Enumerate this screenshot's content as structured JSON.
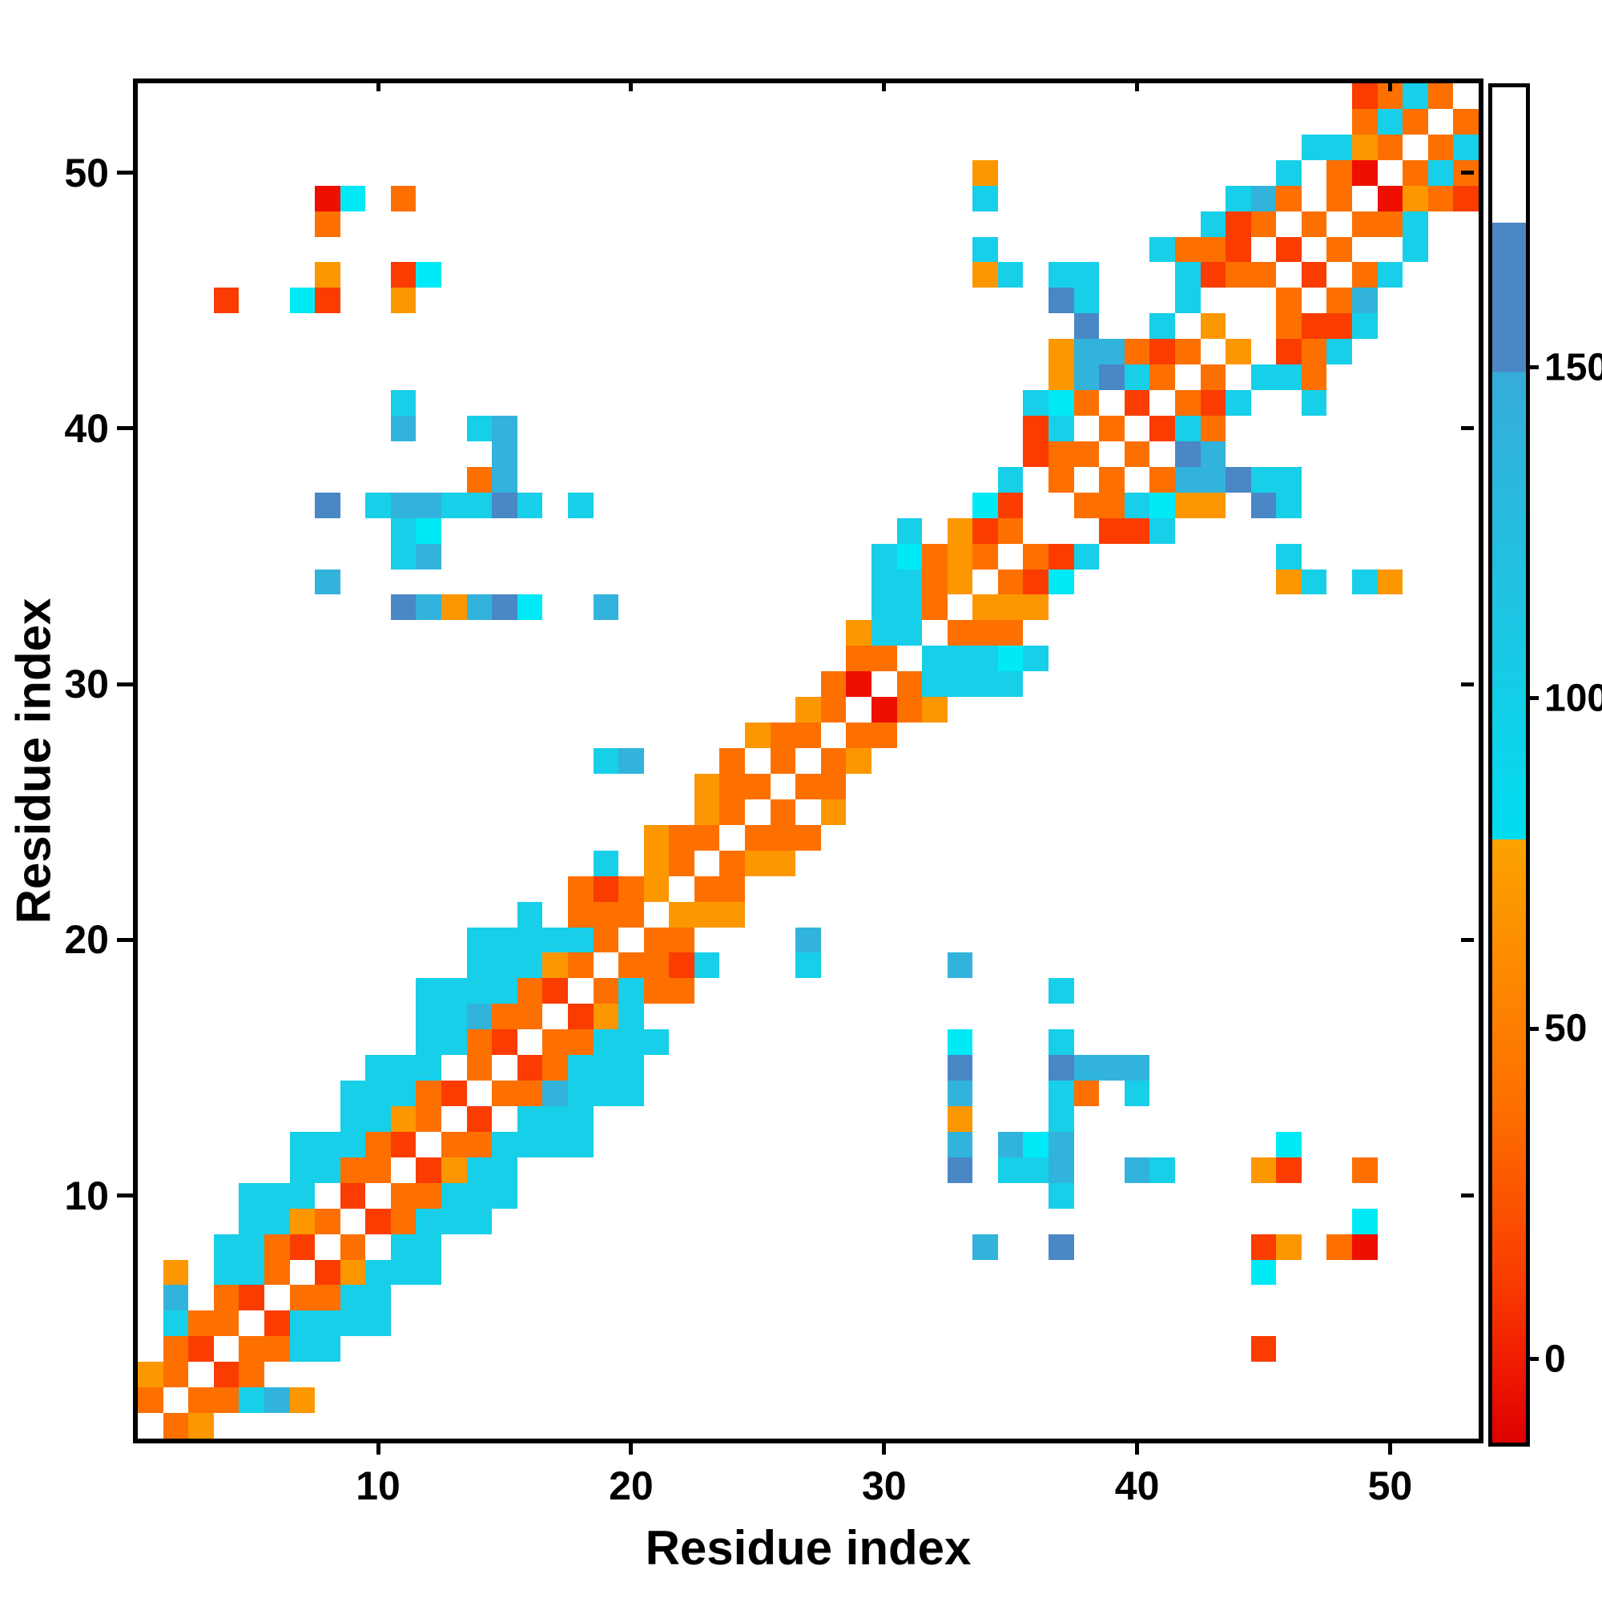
{
  "figure": {
    "xlabel": "Residue index",
    "ylabel": "Residue index",
    "background": "#ffffff",
    "spine_color": "#000000"
  },
  "chart_data": {
    "type": "heatmap",
    "title": "",
    "xlabel": "Residue index",
    "ylabel": "Residue index",
    "x_range": [
      1,
      53
    ],
    "y_range": [
      1,
      53
    ],
    "x_ticks": [
      10,
      20,
      30,
      40,
      50
    ],
    "y_ticks": [
      10,
      20,
      30,
      40,
      50
    ],
    "grid": false,
    "legend_position": "right-colorbar",
    "colorbar": {
      "ticks": [
        0,
        50,
        100,
        150
      ],
      "range": [
        -12,
        193
      ],
      "stops": [
        [
          0.0,
          "#dd0000"
        ],
        [
          0.05,
          "#ee1600"
        ],
        [
          0.12,
          "#f93c00"
        ],
        [
          0.25,
          "#fd7000"
        ],
        [
          0.36,
          "#fd8c00"
        ],
        [
          0.445,
          "#fba300"
        ],
        [
          0.4451,
          "#00dcf0"
        ],
        [
          0.6,
          "#1cc7e4"
        ],
        [
          0.79,
          "#35acda"
        ],
        [
          0.7901,
          "#4a86c4"
        ],
        [
          0.9,
          "#4a86c4"
        ],
        [
          0.9001,
          "#ffffff"
        ],
        [
          1.0,
          "#ffffff"
        ]
      ]
    },
    "palette": {
      ".": {
        "color": "transparent",
        "meaning": "no contact",
        "value_estimate": null
      },
      "E": {
        "color": "#ee0f00",
        "value_estimate": 5
      },
      "R": {
        "color": "#fa3c00",
        "value_estimate": 18
      },
      "O": {
        "color": "#fd7000",
        "value_estimate": 38
      },
      "A": {
        "color": "#fc9700",
        "value_estimate": 58
      },
      "P": {
        "color": "#00e9f7",
        "value_estimate": 78
      },
      "C": {
        "color": "#17cfe8",
        "value_estimate": 95
      },
      "D": {
        "color": "#32b3dc",
        "value_estimate": 118
      },
      "B": {
        "color": "#4a87c5",
        "value_estimate": 158
      }
    },
    "matrix_order": "rows listed top-to-bottom = residue 53 down to residue 1; chars left-to-right = residue 1..53",
    "matrix": [
      "................................................ROCO.",
      "................................................OCO.O",
      "..............................................CCAO.OC",
      ".................................A...........C.OE.OCO",
      ".......EP.O......................C.........CDO.O.EAOR",
      ".......O..................................CRO.O.OOC..",
      ".................................C......COOR.R.O..C..",
      ".......A..RP.....................AC.CC...CROO.R.OC...",
      "...R..PR..A.........................BC...C...O.OD....",
      ".....................................B..C.A..ORRC....",
      "....................................ADDORO.A.ROC.....",
      "....................................ADBCO.O.CCO......",
      "..........C........................CPO.R.ORC..C......",
      "..........D..CD....................RC.O.RCO..........",
      "..............D....................ROO.O.BD..........",
      ".............OD...................C.O.O.ODDBCC.......",
      ".......B.CDDCCBC.C...............PR..OOCPAA.BC.......",
      "..........CP..................C.ARO...RRC............",
      "..........CD.................CPOAO.ORC.......C.......",
      ".......D.....................CCOA.ORP........AC.CA...",
      "..........BDADBP..D..........CCO.AAA.................",
      "............................ACC.OOO..................",
      "............................OO.CCCPC.................",
      "...........................OE.OCCCC..................",
      "..........................AO.EOA.....................",
      "........................AOO.OO.......................",
      "..................CD...O.O.OA........................",
      "......................AOO.OO.........................",
      "......................AO.O.A.........................",
      "....................AOO.OOO..........................",
      "..................C.AO.OAA...........................",
      ".................OROA.OO.............................",
      "...............C.OOO.AAA.............................",
      ".............CCCCCO.OO....D..........................",
      ".............CCCAO.OORC...C.....D....................",
      "...........CCCCOR.OCOO..............C................",
      "...........CCDOO.RAC.................................",
      "...........CCOR.OOCCC...........P...C................",
      ".........CCC.O.ROCCC............B...BDDD.............",
      "........CCCOR.OODCCC............D...CO.C.............",
      "........CCAO.R.CCC..............A...C................",
      "......CCCOR.OOCCCC..............D.DPD........P.......",
      "......CCOO.RACC.................B.CCD..DC...AR..O....",
      "....CCC.R.OOCCC.....................C................",
      "....CCAO.ROCCC..................................P....",
      "...CCOR.O.CC.....................D..B.......RA.OE....",
      ".A.CCO.RACCC................................P........",
      ".D.OR.OOCC...........................................",
      ".COO.RCCCC...........................................",
      ".OR.OOCC....................................R........",
      "AO.RO................................................",
      "O.OOCDA..............................................",
      ".OA.................................................."
    ]
  }
}
